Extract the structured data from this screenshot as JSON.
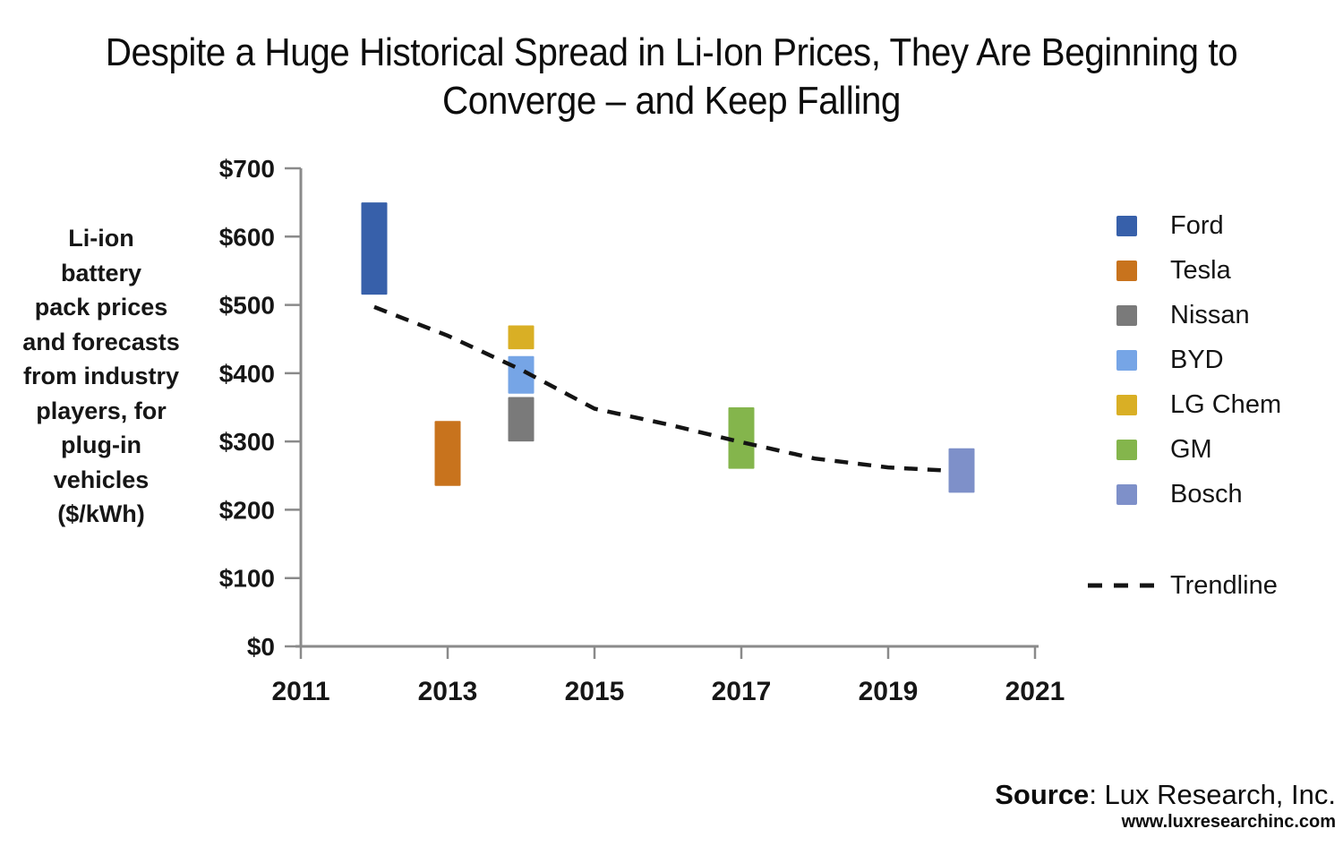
{
  "title": {
    "line1": "Despite a Huge Historical Spread in Li-Ion Prices, They Are Beginning to",
    "line2": "Converge – and Keep Falling"
  },
  "y_axis_description": {
    "text": "Li-ion\nbattery\npack prices\nand forecasts\nfrom industry\nplayers, for\nplug-in\nvehicles\n($/kWh)"
  },
  "source": {
    "label": "Source",
    "rest": ": Lux Research, Inc.",
    "url": "www.luxresearchinc.com"
  },
  "chart_data": {
    "type": "bar",
    "subtype": "floating-range-columns",
    "title": "Despite a Huge Historical Spread in Li-Ion Prices, They Are Beginning to Converge – and Keep Falling",
    "xlabel": "",
    "ylabel": "Li-ion battery pack prices and forecasts from industry players, for plug-in vehicles ($/kWh)",
    "x_range": [
      2011,
      2021
    ],
    "y_range": [
      0,
      700
    ],
    "x_ticks": [
      2011,
      2013,
      2015,
      2017,
      2019,
      2021
    ],
    "x_tick_labels": [
      "2011",
      "2013",
      "2015",
      "2017",
      "2019",
      "2021"
    ],
    "y_ticks": [
      0,
      100,
      200,
      300,
      400,
      500,
      600,
      700
    ],
    "y_tick_labels": [
      "$0",
      "$100",
      "$200",
      "$300",
      "$400",
      "$500",
      "$600",
      "$700"
    ],
    "grid": false,
    "legend_position": "right",
    "series": [
      {
        "name": "Ford",
        "color": "#3760AA",
        "year": 2012,
        "low": 515,
        "high": 650
      },
      {
        "name": "Tesla",
        "color": "#C8731D",
        "year": 2013,
        "low": 235,
        "high": 330
      },
      {
        "name": "Nissan",
        "color": "#7A7A7A",
        "year": 2014,
        "low": 300,
        "high": 365
      },
      {
        "name": "BYD",
        "color": "#76A5E6",
        "year": 2014,
        "low": 370,
        "high": 425
      },
      {
        "name": "LG Chem",
        "color": "#D9AF25",
        "year": 2014,
        "low": 435,
        "high": 470
      },
      {
        "name": "GM",
        "color": "#84B54C",
        "year": 2017,
        "low": 260,
        "high": 350
      },
      {
        "name": "Bosch",
        "color": "#7E90C9",
        "year": 2020,
        "low": 225,
        "high": 290
      }
    ],
    "trendline": {
      "name": "Trendline",
      "color": "#141414",
      "dashed": true,
      "points": [
        [
          2012,
          497
        ],
        [
          2013,
          455
        ],
        [
          2014,
          405
        ],
        [
          2015,
          348
        ],
        [
          2016,
          325
        ],
        [
          2017,
          299
        ],
        [
          2018,
          275
        ],
        [
          2019,
          262
        ],
        [
          2019.85,
          257
        ]
      ]
    },
    "axis_color": "#8A8A8A"
  }
}
